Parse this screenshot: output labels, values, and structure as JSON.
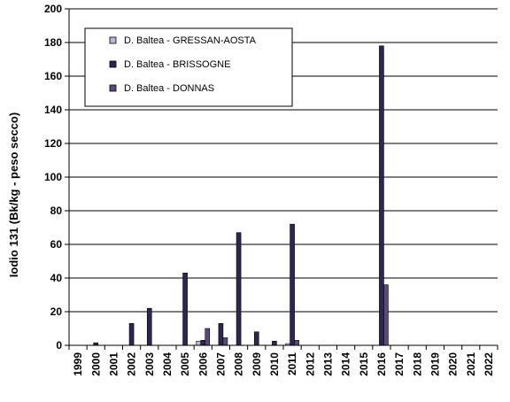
{
  "chart_data": {
    "type": "bar",
    "ylabel": "Iodio 131  (Bk/kg - peso secco)",
    "ylim": [
      0,
      200
    ],
    "yticks": [
      0,
      20,
      40,
      60,
      80,
      100,
      120,
      140,
      160,
      180,
      200
    ],
    "categories": [
      "1999",
      "2000",
      "2001",
      "2002",
      "2003",
      "2004",
      "2005",
      "2006",
      "2007",
      "2008",
      "2009",
      "2010",
      "2011",
      "2012",
      "2013",
      "2014",
      "2015",
      "2016",
      "2017",
      "2018",
      "2019",
      "2020",
      "2021",
      "2022"
    ],
    "series": [
      {
        "name": "D. Baltea - GRESSAN-AOSTA",
        "color": "#b8b8d8",
        "values": [
          0,
          0,
          0,
          0,
          0,
          0,
          0,
          2.5,
          0,
          0,
          0,
          0,
          1,
          0,
          0,
          0,
          0,
          0,
          0,
          0,
          0,
          0,
          0,
          0
        ]
      },
      {
        "name": "D. Baltea - BRISSOGNE",
        "color": "#2e2550",
        "values": [
          0,
          1.5,
          0,
          13,
          22,
          0,
          43,
          3,
          13,
          67,
          8,
          2.5,
          72,
          0,
          0,
          0,
          0,
          178,
          0,
          0,
          0,
          0,
          0,
          0
        ]
      },
      {
        "name": "D. Baltea - DONNAS",
        "color": "#5a4a78",
        "values": [
          0,
          0,
          0,
          0,
          0,
          0,
          0,
          10,
          4.5,
          0,
          0,
          0,
          3,
          0,
          0,
          0,
          0,
          36,
          0,
          0,
          0,
          0,
          0,
          0
        ]
      }
    ],
    "grid": true,
    "legend": "top-left"
  }
}
